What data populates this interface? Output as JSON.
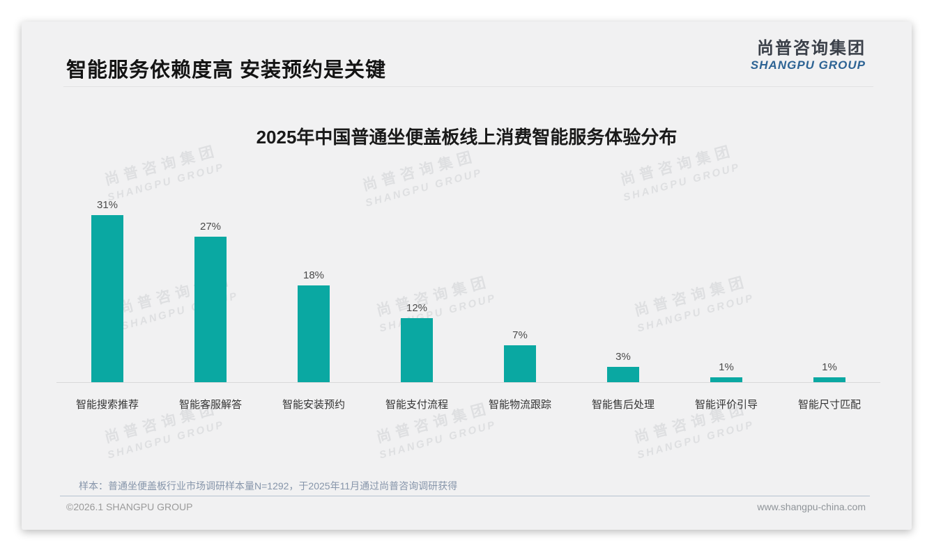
{
  "page_title": "智能服务依赖度高 安装预约是关键",
  "logo": {
    "cn": "尚普咨询集团",
    "en": "SHANGPU GROUP"
  },
  "watermark": {
    "cn": "尚普咨询集团",
    "en": "SHANGPU GROUP"
  },
  "chart_data": {
    "type": "bar",
    "title": "2025年中国普通坐便盖板线上消费智能服务体验分布",
    "categories": [
      "智能搜索推荐",
      "智能客服解答",
      "智能安装预约",
      "智能支付流程",
      "智能物流跟踪",
      "智能售后处理",
      "智能评价引导",
      "智能尺寸匹配"
    ],
    "values": [
      31,
      27,
      18,
      12,
      7,
      3,
      1,
      1
    ],
    "value_labels": [
      "31%",
      "27%",
      "18%",
      "12%",
      "7%",
      "3%",
      "1%",
      "1%"
    ],
    "unit": "%",
    "bar_color": "#0aa8a2",
    "value_label_color": "#4a4a4a",
    "ylim": [
      0,
      35
    ],
    "grid": false,
    "legend": null,
    "xlabel": "",
    "ylabel": ""
  },
  "footnote": "样本：普通坐便盖板行业市场调研样本量N=1292，于2025年11月通过尚普咨询调研获得",
  "footer": {
    "left": "©2026.1 SHANGPU GROUP",
    "right": "www.shangpu-china.com"
  },
  "colors": {
    "bar_teal": "#0aa8a2",
    "logo_blue": "#2d6394",
    "footnote_gray_blue": "#8695aa",
    "slide_background": "#f1f1f2"
  }
}
